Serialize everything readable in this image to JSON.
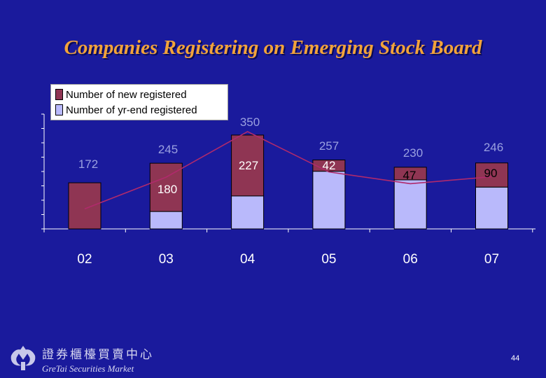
{
  "slide": {
    "title": "Companies Registering on Emerging Stock Board",
    "page_number": "44",
    "logo": {
      "name": "gretai-logo-icon",
      "chinese_text": "證券櫃檯買賣中心",
      "english_text": "GreTai Securities Market"
    }
  },
  "colors": {
    "background": "#1a1a9c",
    "title": "#f2a33a",
    "new_registered": "#8f3553",
    "yr_end_registered": "#b9b9fb",
    "line": "#b02a6c",
    "axis": "#ffffff"
  },
  "chart_data": {
    "type": "bar",
    "categories": [
      "02",
      "03",
      "04",
      "05",
      "06",
      "07"
    ],
    "legend_position": "top-left",
    "series": [
      {
        "name": "Number of new registered",
        "values": [
          172,
          180,
          227,
          42,
          47,
          90
        ],
        "value_labels": [
          "172",
          "180",
          "227",
          "42",
          "47",
          "90"
        ]
      },
      {
        "name": "Number of yr-end registered",
        "values": [
          172,
          245,
          350,
          257,
          230,
          246
        ],
        "value_labels": [
          "172",
          "245",
          "350",
          "257",
          "230",
          "246"
        ]
      }
    ],
    "grid": false
  }
}
